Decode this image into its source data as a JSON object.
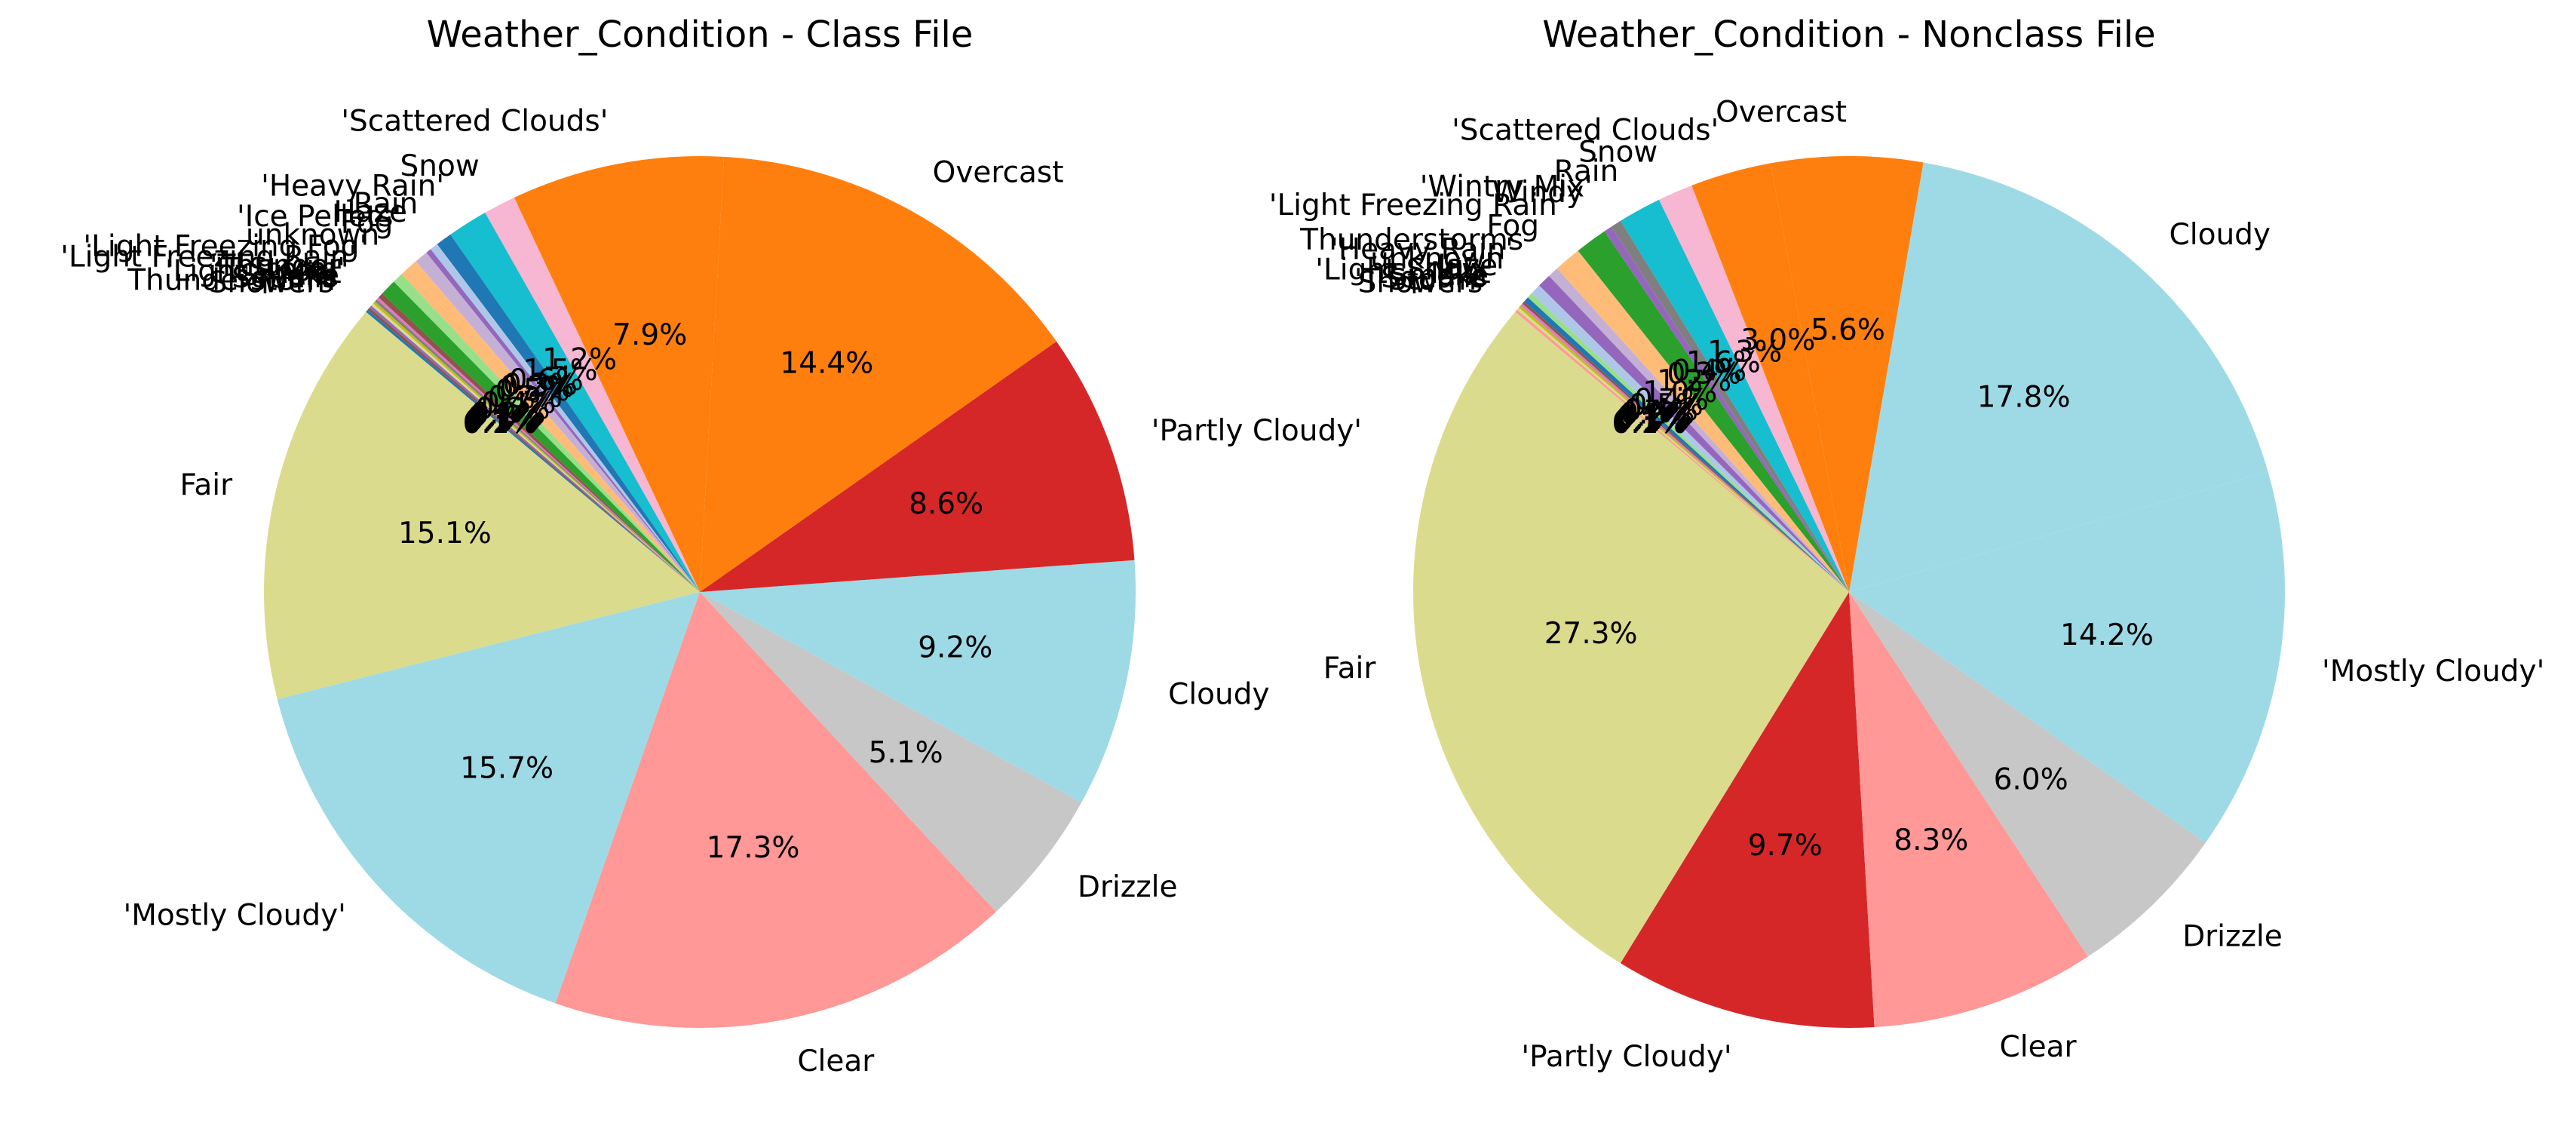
{
  "chart_data": [
    {
      "type": "pie",
      "title": "Weather_Condition - Class File",
      "start_angle_deg": 140,
      "direction": "counterclockwise",
      "slices": [
        {
          "label": "Fair",
          "value": 15.1,
          "value_label": "15.1%",
          "color": "#dbdb8d"
        },
        {
          "label": "'Mostly Cloudy'",
          "value": 15.7,
          "value_label": "15.7%",
          "color": "#9edae5"
        },
        {
          "label": "Clear",
          "value": 17.3,
          "value_label": "17.3%",
          "color": "#ff9896"
        },
        {
          "label": "Drizzle",
          "value": 5.1,
          "value_label": "5.1%",
          "color": "#c7c7c7"
        },
        {
          "label": "Cloudy",
          "value": 9.2,
          "value_label": "9.2%",
          "color": "#9edae5"
        },
        {
          "label": "'Partly Cloudy'",
          "value": 8.6,
          "value_label": "8.6%",
          "color": "#d62728"
        },
        {
          "label": "Overcast",
          "value": 14.4,
          "value_label": "14.4%",
          "color": "#ff7f0e"
        },
        {
          "label": "'Scattered Clouds'",
          "value": 7.9,
          "value_label": "7.9%",
          "color": "#ff7f0e"
        },
        {
          "label": "Snow",
          "value": 1.2,
          "value_label": "1.2%",
          "color": "#f7b6d2"
        },
        {
          "label": "'Heavy Rain'",
          "value": 1.5,
          "value_label": "1.5%",
          "color": "#17becf"
        },
        {
          "label": "Rain",
          "value": 0.6,
          "value_label": "0.6%",
          "color": "#1f77b4"
        },
        {
          "label": "Haze",
          "value": 0.3,
          "value_label": "0.3%",
          "color": "#aec7e8"
        },
        {
          "label": "'Ice Pellets'",
          "value": 0.2,
          "value_label": "0.2%",
          "color": "#9467bd"
        },
        {
          "label": "Fog",
          "value": 0.5,
          "value_label": "0.5%",
          "color": "#c5b0d5"
        },
        {
          "label": "unknown",
          "value": 0.7,
          "value_label": "0.7%",
          "color": "#ffbb78"
        },
        {
          "label": "'Light Freezing Fog'",
          "value": 0.4,
          "value_label": "0.4%",
          "color": "#98df8a"
        },
        {
          "label": "'Light Freezing Rain'",
          "value": 0.6,
          "value_label": "0.6%",
          "color": "#2ca02c"
        },
        {
          "label": "'Thunder'",
          "value": 0.2,
          "value_label": "0.2%",
          "color": "#8c564b"
        },
        {
          "label": "'T-Storm'",
          "value": 0.1,
          "value_label": "0.1%",
          "color": "#e377c2"
        },
        {
          "label": "'Light Snow'",
          "value": 0.1,
          "value_label": "0.1%",
          "color": "#7f7f7f"
        },
        {
          "label": "Mist",
          "value": 0.1,
          "value_label": "0.1%",
          "color": "#bcbd22"
        },
        {
          "label": "Smoke",
          "value": 0.1,
          "value_label": "0.1%",
          "color": "#dbdb8d"
        },
        {
          "label": "Squalls",
          "value": 0.1,
          "value_label": "0.1%",
          "color": "#9467bd"
        },
        {
          "label": "Thunderstorm",
          "value": 0.1,
          "value_label": "0.1%",
          "color": "#8c564b"
        },
        {
          "label": "Showers",
          "value": 0.1,
          "value_label": "0.1%",
          "color": "#1f77b4"
        }
      ]
    },
    {
      "type": "pie",
      "title": "Weather_Condition - Nonclass File",
      "start_angle_deg": 140,
      "direction": "counterclockwise",
      "slices": [
        {
          "label": "Fair",
          "value": 27.3,
          "value_label": "27.3%",
          "color": "#dbdb8d"
        },
        {
          "label": "'Partly Cloudy'",
          "value": 9.7,
          "value_label": "9.7%",
          "color": "#d62728"
        },
        {
          "label": "Clear",
          "value": 8.3,
          "value_label": "8.3%",
          "color": "#ff9896"
        },
        {
          "label": "Drizzle",
          "value": 6.0,
          "value_label": "6.0%",
          "color": "#c7c7c7"
        },
        {
          "label": "'Mostly Cloudy'",
          "value": 14.2,
          "value_label": "14.2%",
          "color": "#9edae5"
        },
        {
          "label": "Cloudy",
          "value": 17.8,
          "value_label": "17.8%",
          "color": "#9edae5"
        },
        {
          "label": "Overcast",
          "value": 5.6,
          "value_label": "5.6%",
          "color": "#ff7f0e"
        },
        {
          "label": "'Scattered Clouds'",
          "value": 3.0,
          "value_label": "3.0%",
          "color": "#ff7f0e"
        },
        {
          "label": "Snow",
          "value": 1.3,
          "value_label": "1.3%",
          "color": "#f7b6d2"
        },
        {
          "label": "Rain",
          "value": 1.6,
          "value_label": "1.6%",
          "color": "#17becf"
        },
        {
          "label": "'Wintry Mix'",
          "value": 0.4,
          "value_label": "0.4%",
          "color": "#7f7f7f"
        },
        {
          "label": "Windy",
          "value": 0.3,
          "value_label": "0.3%",
          "color": "#9467bd"
        },
        {
          "label": "'Light Freezing Rain'",
          "value": 1.2,
          "value_label": "1.2%",
          "color": "#2ca02c"
        },
        {
          "label": "Fog",
          "value": 1.0,
          "value_label": "1.0%",
          "color": "#ffbb78"
        },
        {
          "label": "Thunderstorms",
          "value": 0.4,
          "value_label": "0.4%",
          "color": "#c5b0d5"
        },
        {
          "label": "'Heavy Rain'",
          "value": 0.5,
          "value_label": "0.5%",
          "color": "#9467bd"
        },
        {
          "label": "unknown",
          "value": 0.4,
          "value_label": "0.4%",
          "color": "#aec7e8"
        },
        {
          "label": "Haze",
          "value": 0.2,
          "value_label": "0.2%",
          "color": "#98df8a"
        },
        {
          "label": "'Light Snow'",
          "value": 0.2,
          "value_label": "0.2%",
          "color": "#1f77b4"
        },
        {
          "label": "Mist",
          "value": 0.1,
          "value_label": "0.1%",
          "color": "#8c564b"
        },
        {
          "label": "Smoke",
          "value": 0.1,
          "value_label": "0.1%",
          "color": "#e377c2"
        },
        {
          "label": "Squalls",
          "value": 0.1,
          "value_label": "0.1%",
          "color": "#bcbd22"
        },
        {
          "label": "'T-Storm'",
          "value": 0.1,
          "value_label": "0.1%",
          "color": "#dbdb8d"
        },
        {
          "label": "Showers",
          "value": 0.1,
          "value_label": "0.1%",
          "color": "#ff9896"
        }
      ]
    }
  ]
}
